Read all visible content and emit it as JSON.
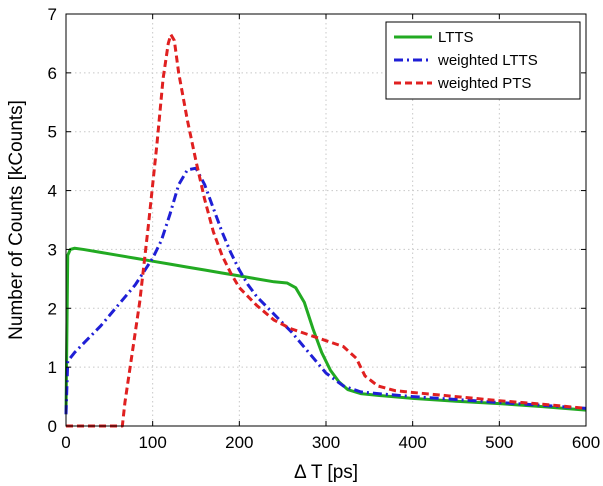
{
  "chart_data": {
    "type": "line",
    "title": "",
    "xlabel": "Δ T [ps]",
    "ylabel": "Number of Counts [kCounts]",
    "xlim": [
      0,
      600
    ],
    "ylim": [
      0,
      7
    ],
    "xticks": [
      0,
      100,
      200,
      300,
      400,
      500,
      600
    ],
    "yticks": [
      0,
      1,
      2,
      3,
      4,
      5,
      6,
      7
    ],
    "xtick_labels": [
      "0",
      "100",
      "200",
      "300",
      "400",
      "500",
      "600"
    ],
    "ytick_labels": [
      "0",
      "1",
      "2",
      "3",
      "4",
      "5",
      "6",
      "7"
    ],
    "grid": true,
    "legend_position": "top-right",
    "series": [
      {
        "name": "LTTS",
        "color": "#22aa22",
        "line_style": "solid",
        "points": [
          [
            0,
            0.2
          ],
          [
            2,
            2.9
          ],
          [
            5,
            3.0
          ],
          [
            10,
            3.02
          ],
          [
            20,
            3.0
          ],
          [
            40,
            2.95
          ],
          [
            60,
            2.9
          ],
          [
            80,
            2.85
          ],
          [
            100,
            2.8
          ],
          [
            120,
            2.75
          ],
          [
            140,
            2.7
          ],
          [
            160,
            2.65
          ],
          [
            180,
            2.6
          ],
          [
            200,
            2.55
          ],
          [
            220,
            2.5
          ],
          [
            240,
            2.45
          ],
          [
            255,
            2.43
          ],
          [
            265,
            2.35
          ],
          [
            275,
            2.1
          ],
          [
            285,
            1.65
          ],
          [
            295,
            1.25
          ],
          [
            305,
            0.95
          ],
          [
            315,
            0.75
          ],
          [
            325,
            0.62
          ],
          [
            340,
            0.55
          ],
          [
            360,
            0.52
          ],
          [
            400,
            0.47
          ],
          [
            450,
            0.42
          ],
          [
            500,
            0.38
          ],
          [
            550,
            0.33
          ],
          [
            600,
            0.27
          ]
        ]
      },
      {
        "name": "weighted LTTS",
        "color": "#1f1fd6",
        "line_style": "dashdot",
        "points": [
          [
            0,
            0.2
          ],
          [
            2,
            1.1
          ],
          [
            10,
            1.25
          ],
          [
            20,
            1.4
          ],
          [
            40,
            1.7
          ],
          [
            60,
            2.05
          ],
          [
            80,
            2.4
          ],
          [
            100,
            2.85
          ],
          [
            110,
            3.15
          ],
          [
            120,
            3.6
          ],
          [
            130,
            4.1
          ],
          [
            140,
            4.35
          ],
          [
            150,
            4.38
          ],
          [
            160,
            4.1
          ],
          [
            170,
            3.7
          ],
          [
            180,
            3.3
          ],
          [
            190,
            2.95
          ],
          [
            200,
            2.65
          ],
          [
            210,
            2.4
          ],
          [
            220,
            2.2
          ],
          [
            240,
            1.9
          ],
          [
            260,
            1.6
          ],
          [
            280,
            1.25
          ],
          [
            300,
            0.9
          ],
          [
            320,
            0.68
          ],
          [
            340,
            0.58
          ],
          [
            360,
            0.55
          ],
          [
            400,
            0.5
          ],
          [
            450,
            0.45
          ],
          [
            500,
            0.4
          ],
          [
            550,
            0.35
          ],
          [
            600,
            0.3
          ]
        ]
      },
      {
        "name": "weighted PTS",
        "color": "#e02020",
        "line_style": "dashed",
        "points": [
          [
            0,
            0.0
          ],
          [
            60,
            0.0
          ],
          [
            65,
            0.0
          ],
          [
            68,
            0.4
          ],
          [
            75,
            1.1
          ],
          [
            85,
            2.1
          ],
          [
            95,
            3.4
          ],
          [
            105,
            4.8
          ],
          [
            112,
            5.9
          ],
          [
            118,
            6.5
          ],
          [
            121,
            6.65
          ],
          [
            125,
            6.55
          ],
          [
            130,
            6.0
          ],
          [
            140,
            5.2
          ],
          [
            150,
            4.5
          ],
          [
            160,
            3.85
          ],
          [
            170,
            3.3
          ],
          [
            180,
            2.9
          ],
          [
            190,
            2.6
          ],
          [
            200,
            2.35
          ],
          [
            220,
            2.05
          ],
          [
            240,
            1.8
          ],
          [
            260,
            1.65
          ],
          [
            280,
            1.55
          ],
          [
            300,
            1.45
          ],
          [
            320,
            1.35
          ],
          [
            335,
            1.15
          ],
          [
            345,
            0.85
          ],
          [
            360,
            0.68
          ],
          [
            380,
            0.6
          ],
          [
            400,
            0.57
          ],
          [
            450,
            0.5
          ],
          [
            500,
            0.43
          ],
          [
            550,
            0.37
          ],
          [
            600,
            0.3
          ]
        ]
      }
    ]
  }
}
